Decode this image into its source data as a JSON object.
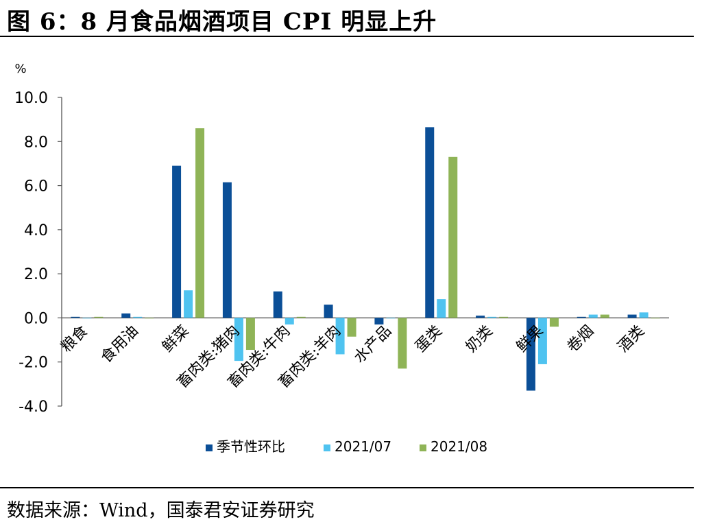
{
  "figure": {
    "title": "图 6：8 月食品烟酒项目 CPI 明显上升",
    "source": "数据来源：Wind，国泰君安证券研究"
  },
  "chart_data": {
    "type": "bar",
    "categories": [
      "粮食",
      "食用油",
      "鲜菜",
      "畜肉类:猪肉",
      "畜肉类:牛肉",
      "畜肉类:羊肉",
      "水产品",
      "蛋类",
      "奶类",
      "鲜果",
      "卷烟",
      "酒类"
    ],
    "series": [
      {
        "name": "季节性环比",
        "color": "#0b4f97",
        "values": [
          0.05,
          0.2,
          6.9,
          6.15,
          1.2,
          0.6,
          -0.3,
          8.65,
          0.1,
          -3.3,
          0.05,
          0.15
        ]
      },
      {
        "name": "2021/07",
        "color": "#4fc3f0",
        "values": [
          0.0,
          0.05,
          1.25,
          -1.95,
          -0.3,
          -1.65,
          0.0,
          0.85,
          0.05,
          -2.1,
          0.15,
          0.25
        ]
      },
      {
        "name": "2021/08",
        "color": "#8fb457",
        "values": [
          0.05,
          0.0,
          8.6,
          -1.45,
          0.05,
          -0.85,
          -2.3,
          7.3,
          0.05,
          -0.4,
          0.15,
          0.0
        ]
      }
    ],
    "ylabel": "%",
    "ylim": [
      -4.0,
      10.0
    ],
    "yticks": [
      10.0,
      8.0,
      6.0,
      4.0,
      2.0,
      0.0,
      -2.0,
      -4.0
    ],
    "ytick_labels": [
      "10.0",
      "8.0",
      "6.0",
      "4.0",
      "2.0",
      "0.0",
      "-2.0",
      "-4.0"
    ],
    "legend_position": "bottom",
    "grid": false
  }
}
